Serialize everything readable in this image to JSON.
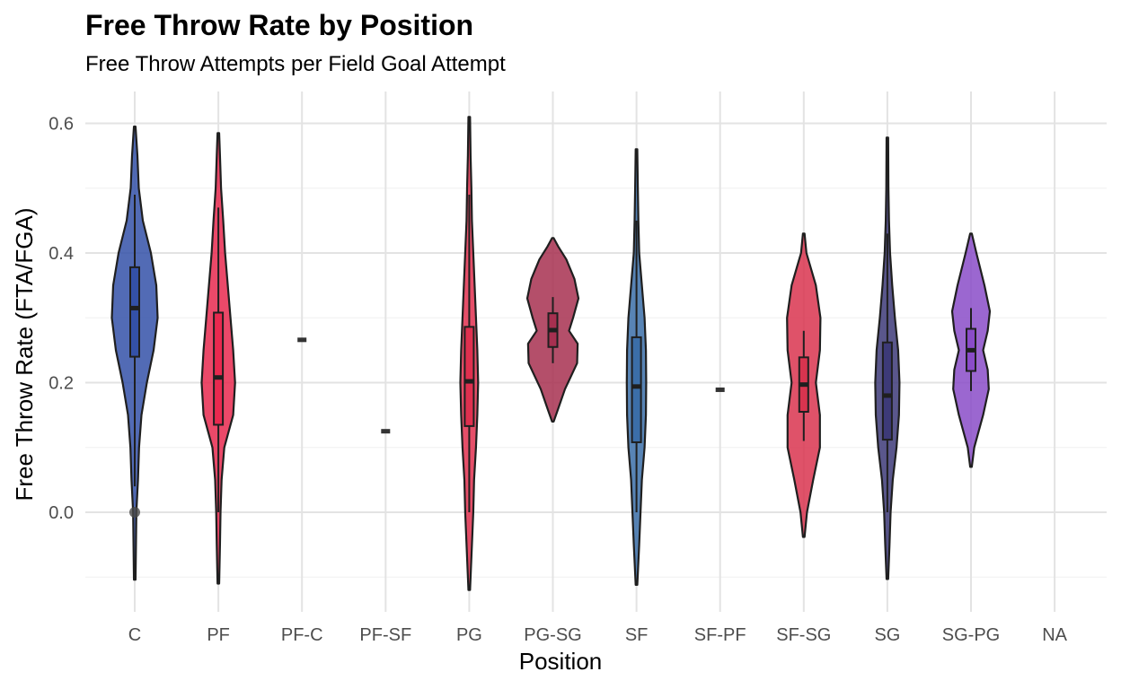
{
  "chart_data": {
    "type": "violin",
    "title": "Free Throw Rate by Position",
    "subtitle": "Free Throw Attempts per Field Goal Attempt",
    "xlabel": "Position",
    "ylabel": "Free Throw Rate (FTA/FGA)",
    "ylim": [
      -0.15,
      0.65
    ],
    "yticks": [
      0.0,
      0.2,
      0.4,
      0.6
    ],
    "grid": true,
    "categories": [
      "C",
      "PF",
      "PF-C",
      "PF-SF",
      "PG",
      "PG-SG",
      "SF",
      "SF-PF",
      "SF-SG",
      "SG",
      "SG-PG",
      "NA"
    ],
    "series": [
      {
        "category": "C",
        "color": "#3451A8",
        "violin": [
          [
            -0.104,
            0.003
          ],
          [
            0.0,
            0.006
          ],
          [
            0.05,
            0.012
          ],
          [
            0.1,
            0.016
          ],
          [
            0.15,
            0.025
          ],
          [
            0.2,
            0.045
          ],
          [
            0.25,
            0.07
          ],
          [
            0.3,
            0.085
          ],
          [
            0.35,
            0.08
          ],
          [
            0.4,
            0.06
          ],
          [
            0.45,
            0.03
          ],
          [
            0.5,
            0.015
          ],
          [
            0.55,
            0.01
          ],
          [
            0.595,
            0.003
          ]
        ],
        "box": {
          "q1": 0.24,
          "median": 0.315,
          "q3": 0.378
        },
        "whisker": [
          0.04,
          0.49
        ],
        "outliers": [
          0.0
        ]
      },
      {
        "category": "PF",
        "color": "#E8294F",
        "violin": [
          [
            -0.11,
            0.003
          ],
          [
            -0.05,
            0.006
          ],
          [
            0.0,
            0.008
          ],
          [
            0.05,
            0.012
          ],
          [
            0.1,
            0.022
          ],
          [
            0.15,
            0.055
          ],
          [
            0.2,
            0.062
          ],
          [
            0.25,
            0.055
          ],
          [
            0.3,
            0.045
          ],
          [
            0.35,
            0.035
          ],
          [
            0.4,
            0.025
          ],
          [
            0.45,
            0.018
          ],
          [
            0.5,
            0.01
          ],
          [
            0.55,
            0.006
          ],
          [
            0.585,
            0.003
          ]
        ],
        "box": {
          "q1": 0.135,
          "median": 0.208,
          "q3": 0.308
        },
        "whisker": [
          0.0,
          0.47
        ],
        "outliers": []
      },
      {
        "category": "PF-C",
        "color": "#333333",
        "single": 0.266
      },
      {
        "category": "PF-SF",
        "color": "#333333",
        "single": 0.125
      },
      {
        "category": "PG",
        "color": "#E0304F",
        "violin": [
          [
            -0.12,
            0.003
          ],
          [
            -0.05,
            0.01
          ],
          [
            0.0,
            0.015
          ],
          [
            0.05,
            0.018
          ],
          [
            0.1,
            0.025
          ],
          [
            0.15,
            0.03
          ],
          [
            0.2,
            0.033
          ],
          [
            0.25,
            0.03
          ],
          [
            0.3,
            0.025
          ],
          [
            0.35,
            0.02
          ],
          [
            0.4,
            0.015
          ],
          [
            0.45,
            0.01
          ],
          [
            0.5,
            0.008
          ],
          [
            0.55,
            0.005
          ],
          [
            0.61,
            0.003
          ]
        ],
        "box": {
          "q1": 0.133,
          "median": 0.202,
          "q3": 0.286
        },
        "whisker": [
          0.0,
          0.49
        ],
        "outliers": []
      },
      {
        "category": "PG-SG",
        "color": "#A73050",
        "violin": [
          [
            0.14,
            0.003
          ],
          [
            0.16,
            0.02
          ],
          [
            0.19,
            0.045
          ],
          [
            0.23,
            0.09
          ],
          [
            0.26,
            0.092
          ],
          [
            0.28,
            0.06
          ],
          [
            0.3,
            0.075
          ],
          [
            0.33,
            0.095
          ],
          [
            0.36,
            0.08
          ],
          [
            0.39,
            0.05
          ],
          [
            0.41,
            0.02
          ],
          [
            0.423,
            0.003
          ]
        ],
        "box": {
          "q1": 0.255,
          "median": 0.281,
          "q3": 0.307
        },
        "whisker": [
          0.23,
          0.332
        ],
        "outliers": []
      },
      {
        "category": "SF",
        "color": "#3B6EA8",
        "violin": [
          [
            -0.112,
            0.003
          ],
          [
            -0.05,
            0.01
          ],
          [
            0.0,
            0.015
          ],
          [
            0.05,
            0.02
          ],
          [
            0.1,
            0.03
          ],
          [
            0.15,
            0.035
          ],
          [
            0.2,
            0.036
          ],
          [
            0.25,
            0.035
          ],
          [
            0.3,
            0.03
          ],
          [
            0.35,
            0.02
          ],
          [
            0.4,
            0.01
          ],
          [
            0.45,
            0.007
          ],
          [
            0.5,
            0.005
          ],
          [
            0.56,
            0.003
          ]
        ],
        "box": {
          "q1": 0.108,
          "median": 0.194,
          "q3": 0.27
        },
        "whisker": [
          0.0,
          0.45
        ],
        "outliers": []
      },
      {
        "category": "SF-PF",
        "color": "#333333",
        "single": 0.189
      },
      {
        "category": "SF-SG",
        "color": "#D9344F",
        "violin": [
          [
            -0.038,
            0.003
          ],
          [
            0.0,
            0.012
          ],
          [
            0.05,
            0.035
          ],
          [
            0.1,
            0.06
          ],
          [
            0.15,
            0.06
          ],
          [
            0.2,
            0.045
          ],
          [
            0.25,
            0.06
          ],
          [
            0.3,
            0.062
          ],
          [
            0.35,
            0.045
          ],
          [
            0.4,
            0.01
          ],
          [
            0.43,
            0.003
          ]
        ],
        "box": {
          "q1": 0.155,
          "median": 0.197,
          "q3": 0.239
        },
        "whisker": [
          0.11,
          0.28
        ],
        "outliers": []
      },
      {
        "category": "SG",
        "color": "#3D3A78",
        "violin": [
          [
            -0.103,
            0.003
          ],
          [
            -0.05,
            0.008
          ],
          [
            0.0,
            0.012
          ],
          [
            0.05,
            0.02
          ],
          [
            0.1,
            0.034
          ],
          [
            0.15,
            0.043
          ],
          [
            0.2,
            0.045
          ],
          [
            0.25,
            0.04
          ],
          [
            0.3,
            0.028
          ],
          [
            0.35,
            0.018
          ],
          [
            0.4,
            0.01
          ],
          [
            0.45,
            0.006
          ],
          [
            0.5,
            0.004
          ],
          [
            0.578,
            0.003
          ]
        ],
        "box": {
          "q1": 0.112,
          "median": 0.18,
          "q3": 0.262
        },
        "whisker": [
          0.0,
          0.43
        ],
        "outliers": []
      },
      {
        "category": "SG-PG",
        "color": "#8A4CC8",
        "violin": [
          [
            0.07,
            0.003
          ],
          [
            0.1,
            0.012
          ],
          [
            0.15,
            0.045
          ],
          [
            0.19,
            0.066
          ],
          [
            0.22,
            0.062
          ],
          [
            0.25,
            0.045
          ],
          [
            0.28,
            0.062
          ],
          [
            0.31,
            0.07
          ],
          [
            0.35,
            0.05
          ],
          [
            0.4,
            0.02
          ],
          [
            0.43,
            0.003
          ]
        ],
        "box": {
          "q1": 0.218,
          "median": 0.25,
          "q3": 0.283
        },
        "whisker": [
          0.187,
          0.315
        ],
        "outliers": []
      },
      {
        "category": "NA",
        "empty": true
      }
    ]
  }
}
